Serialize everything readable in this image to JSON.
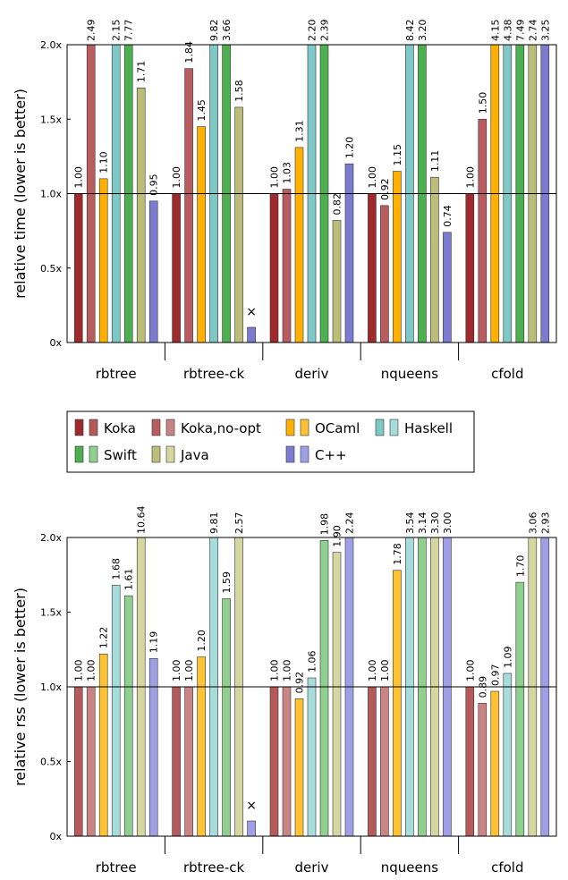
{
  "chart_data": [
    {
      "type": "bar",
      "ylabel": "relative time (lower is better)",
      "categories": [
        "rbtree",
        "rbtree-ck",
        "deriv",
        "nqueens",
        "cfold"
      ],
      "ylim": [
        0,
        2
      ],
      "yticks": [
        {
          "value": 0,
          "label": "0x"
        },
        {
          "value": 0.5,
          "label": "0.5x"
        },
        {
          "value": 1,
          "label": "1.0x"
        },
        {
          "value": 1.5,
          "label": "1.5x"
        },
        {
          "value": 2,
          "label": "2.0x"
        }
      ],
      "reference_line": 1,
      "series": [
        {
          "name": "Koka",
          "color": "#9e2a2b",
          "values": [
            1,
            1,
            1,
            1,
            1
          ],
          "value_labels": [
            "1.00",
            "1.00",
            "1.00",
            "1.00",
            "1.00"
          ]
        },
        {
          "name": "Koka,no-opt",
          "color": "#b85c60",
          "values": [
            2.49,
            1.84,
            1.03,
            0.92,
            1.5
          ],
          "value_labels": [
            "2.49",
            "1.84",
            "1.03",
            "0.92",
            "1.50"
          ]
        },
        {
          "name": "OCaml",
          "color": "#ffb000",
          "values": [
            1.1,
            1.45,
            1.31,
            1.15,
            4.15
          ],
          "value_labels": [
            "1.10",
            "1.45",
            "1.31",
            "1.15",
            "4.15"
          ]
        },
        {
          "name": "Haskell",
          "color": "#7ec8c8",
          "values": [
            2.15,
            9.82,
            2.2,
            8.42,
            4.38
          ],
          "value_labels": [
            "2.15",
            "9.82",
            "2.20",
            "8.42",
            "4.38"
          ]
        },
        {
          "name": "Swift",
          "color": "#4caf50",
          "values": [
            7.77,
            3.66,
            2.39,
            3.2,
            7.49
          ],
          "value_labels": [
            "7.77",
            "3.66",
            "2.39",
            "3.20",
            "7.49"
          ]
        },
        {
          "name": "Java",
          "color": "#bdbd7a",
          "values": [
            1.71,
            1.58,
            0.82,
            1.11,
            2.74
          ],
          "value_labels": [
            "1.71",
            "1.58",
            "0.82",
            "1.11",
            "2.74"
          ]
        },
        {
          "name": "C++",
          "color": "#7b7bd0",
          "values": [
            0.95,
            null,
            1.2,
            0.74,
            3.25
          ],
          "value_labels": [
            "0.95",
            "×",
            "1.20",
            "0.74",
            "3.25"
          ]
        }
      ]
    },
    {
      "type": "bar",
      "ylabel": "relative rss (lower is better)",
      "categories": [
        "rbtree",
        "rbtree-ck",
        "deriv",
        "nqueens",
        "cfold"
      ],
      "ylim": [
        0,
        2
      ],
      "yticks": [
        {
          "value": 0,
          "label": "0x"
        },
        {
          "value": 0.5,
          "label": "0.5x"
        },
        {
          "value": 1,
          "label": "1.0x"
        },
        {
          "value": 1.5,
          "label": "1.5x"
        },
        {
          "value": 2,
          "label": "2.0x"
        }
      ],
      "reference_line": 1,
      "series": [
        {
          "name": "Koka",
          "color": "#b55a5a",
          "values": [
            1,
            1,
            1,
            1,
            1
          ],
          "value_labels": [
            "1.00",
            "1.00",
            "1.00",
            "1.00",
            "1.00"
          ]
        },
        {
          "name": "Koka,no-opt",
          "color": "#c98585",
          "values": [
            1,
            1,
            1,
            1,
            0.89
          ],
          "value_labels": [
            "1.00",
            "1.00",
            "1.00",
            "1.00",
            "0.89"
          ]
        },
        {
          "name": "OCaml",
          "color": "#ffc233",
          "values": [
            1.22,
            1.2,
            0.92,
            1.78,
            0.97
          ],
          "value_labels": [
            "1.22",
            "1.20",
            "0.92",
            "1.78",
            "0.97"
          ]
        },
        {
          "name": "Haskell",
          "color": "#a6dcdc",
          "values": [
            1.68,
            9.81,
            1.06,
            3.54,
            1.09
          ],
          "value_labels": [
            "1.68",
            "9.81",
            "1.06",
            "3.54",
            "1.09"
          ]
        },
        {
          "name": "Swift",
          "color": "#8fcf8f",
          "values": [
            1.61,
            1.59,
            1.98,
            3.14,
            1.7
          ],
          "value_labels": [
            "1.61",
            "1.59",
            "1.98",
            "3.14",
            "1.70"
          ]
        },
        {
          "name": "Java",
          "color": "#d6d6a0",
          "values": [
            10.64,
            2.57,
            1.9,
            3.3,
            3.06
          ],
          "value_labels": [
            "10.64",
            "2.57",
            "1.90",
            "3.30",
            "3.06"
          ]
        },
        {
          "name": "C++",
          "color": "#9f9fe6",
          "values": [
            1.19,
            null,
            2.24,
            3,
            2.93
          ],
          "value_labels": [
            "1.19",
            "×",
            "2.24",
            "3.00",
            "2.93"
          ]
        }
      ]
    }
  ]
}
